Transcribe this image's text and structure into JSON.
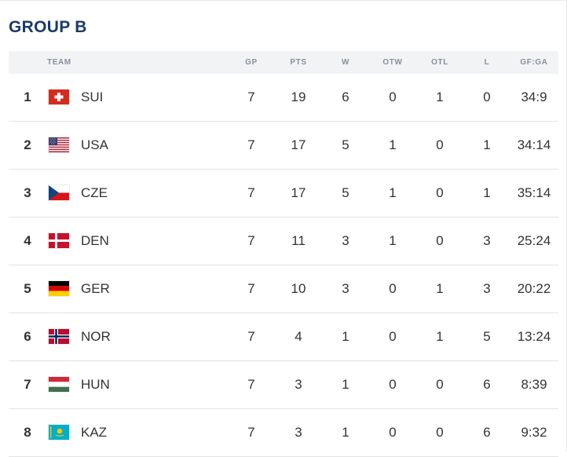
{
  "title": "GROUP B",
  "headers": {
    "team": "TEAM",
    "gp": "GP",
    "pts": "PTS",
    "w": "W",
    "otw": "OTW",
    "otl": "OTL",
    "l": "L",
    "gfga": "GF:GA"
  },
  "rows": [
    {
      "rank": "1",
      "code": "SUI",
      "gp": "7",
      "pts": "19",
      "w": "6",
      "otw": "0",
      "otl": "1",
      "l": "0",
      "gfga": "34:9",
      "flag": "switzerland-flag-icon"
    },
    {
      "rank": "2",
      "code": "USA",
      "gp": "7",
      "pts": "17",
      "w": "5",
      "otw": "1",
      "otl": "0",
      "l": "1",
      "gfga": "34:14",
      "flag": "usa-flag-icon"
    },
    {
      "rank": "3",
      "code": "CZE",
      "gp": "7",
      "pts": "17",
      "w": "5",
      "otw": "1",
      "otl": "0",
      "l": "1",
      "gfga": "35:14",
      "flag": "czechia-flag-icon"
    },
    {
      "rank": "4",
      "code": "DEN",
      "gp": "7",
      "pts": "11",
      "w": "3",
      "otw": "1",
      "otl": "0",
      "l": "3",
      "gfga": "25:24",
      "flag": "denmark-flag-icon"
    },
    {
      "rank": "5",
      "code": "GER",
      "gp": "7",
      "pts": "10",
      "w": "3",
      "otw": "0",
      "otl": "1",
      "l": "3",
      "gfga": "20:22",
      "flag": "germany-flag-icon"
    },
    {
      "rank": "6",
      "code": "NOR",
      "gp": "7",
      "pts": "4",
      "w": "1",
      "otw": "0",
      "otl": "1",
      "l": "5",
      "gfga": "13:24",
      "flag": "norway-flag-icon"
    },
    {
      "rank": "7",
      "code": "HUN",
      "gp": "7",
      "pts": "3",
      "w": "1",
      "otw": "0",
      "otl": "0",
      "l": "6",
      "gfga": "8:39",
      "flag": "hungary-flag-icon"
    },
    {
      "rank": "8",
      "code": "KAZ",
      "gp": "7",
      "pts": "3",
      "w": "1",
      "otw": "0",
      "otl": "0",
      "l": "6",
      "gfga": "9:32",
      "flag": "kazakhstan-flag-icon"
    }
  ],
  "colors": {
    "title": "#1a3a6b",
    "header_bg": "#f2f3f5",
    "header_text": "#8a8f99"
  }
}
